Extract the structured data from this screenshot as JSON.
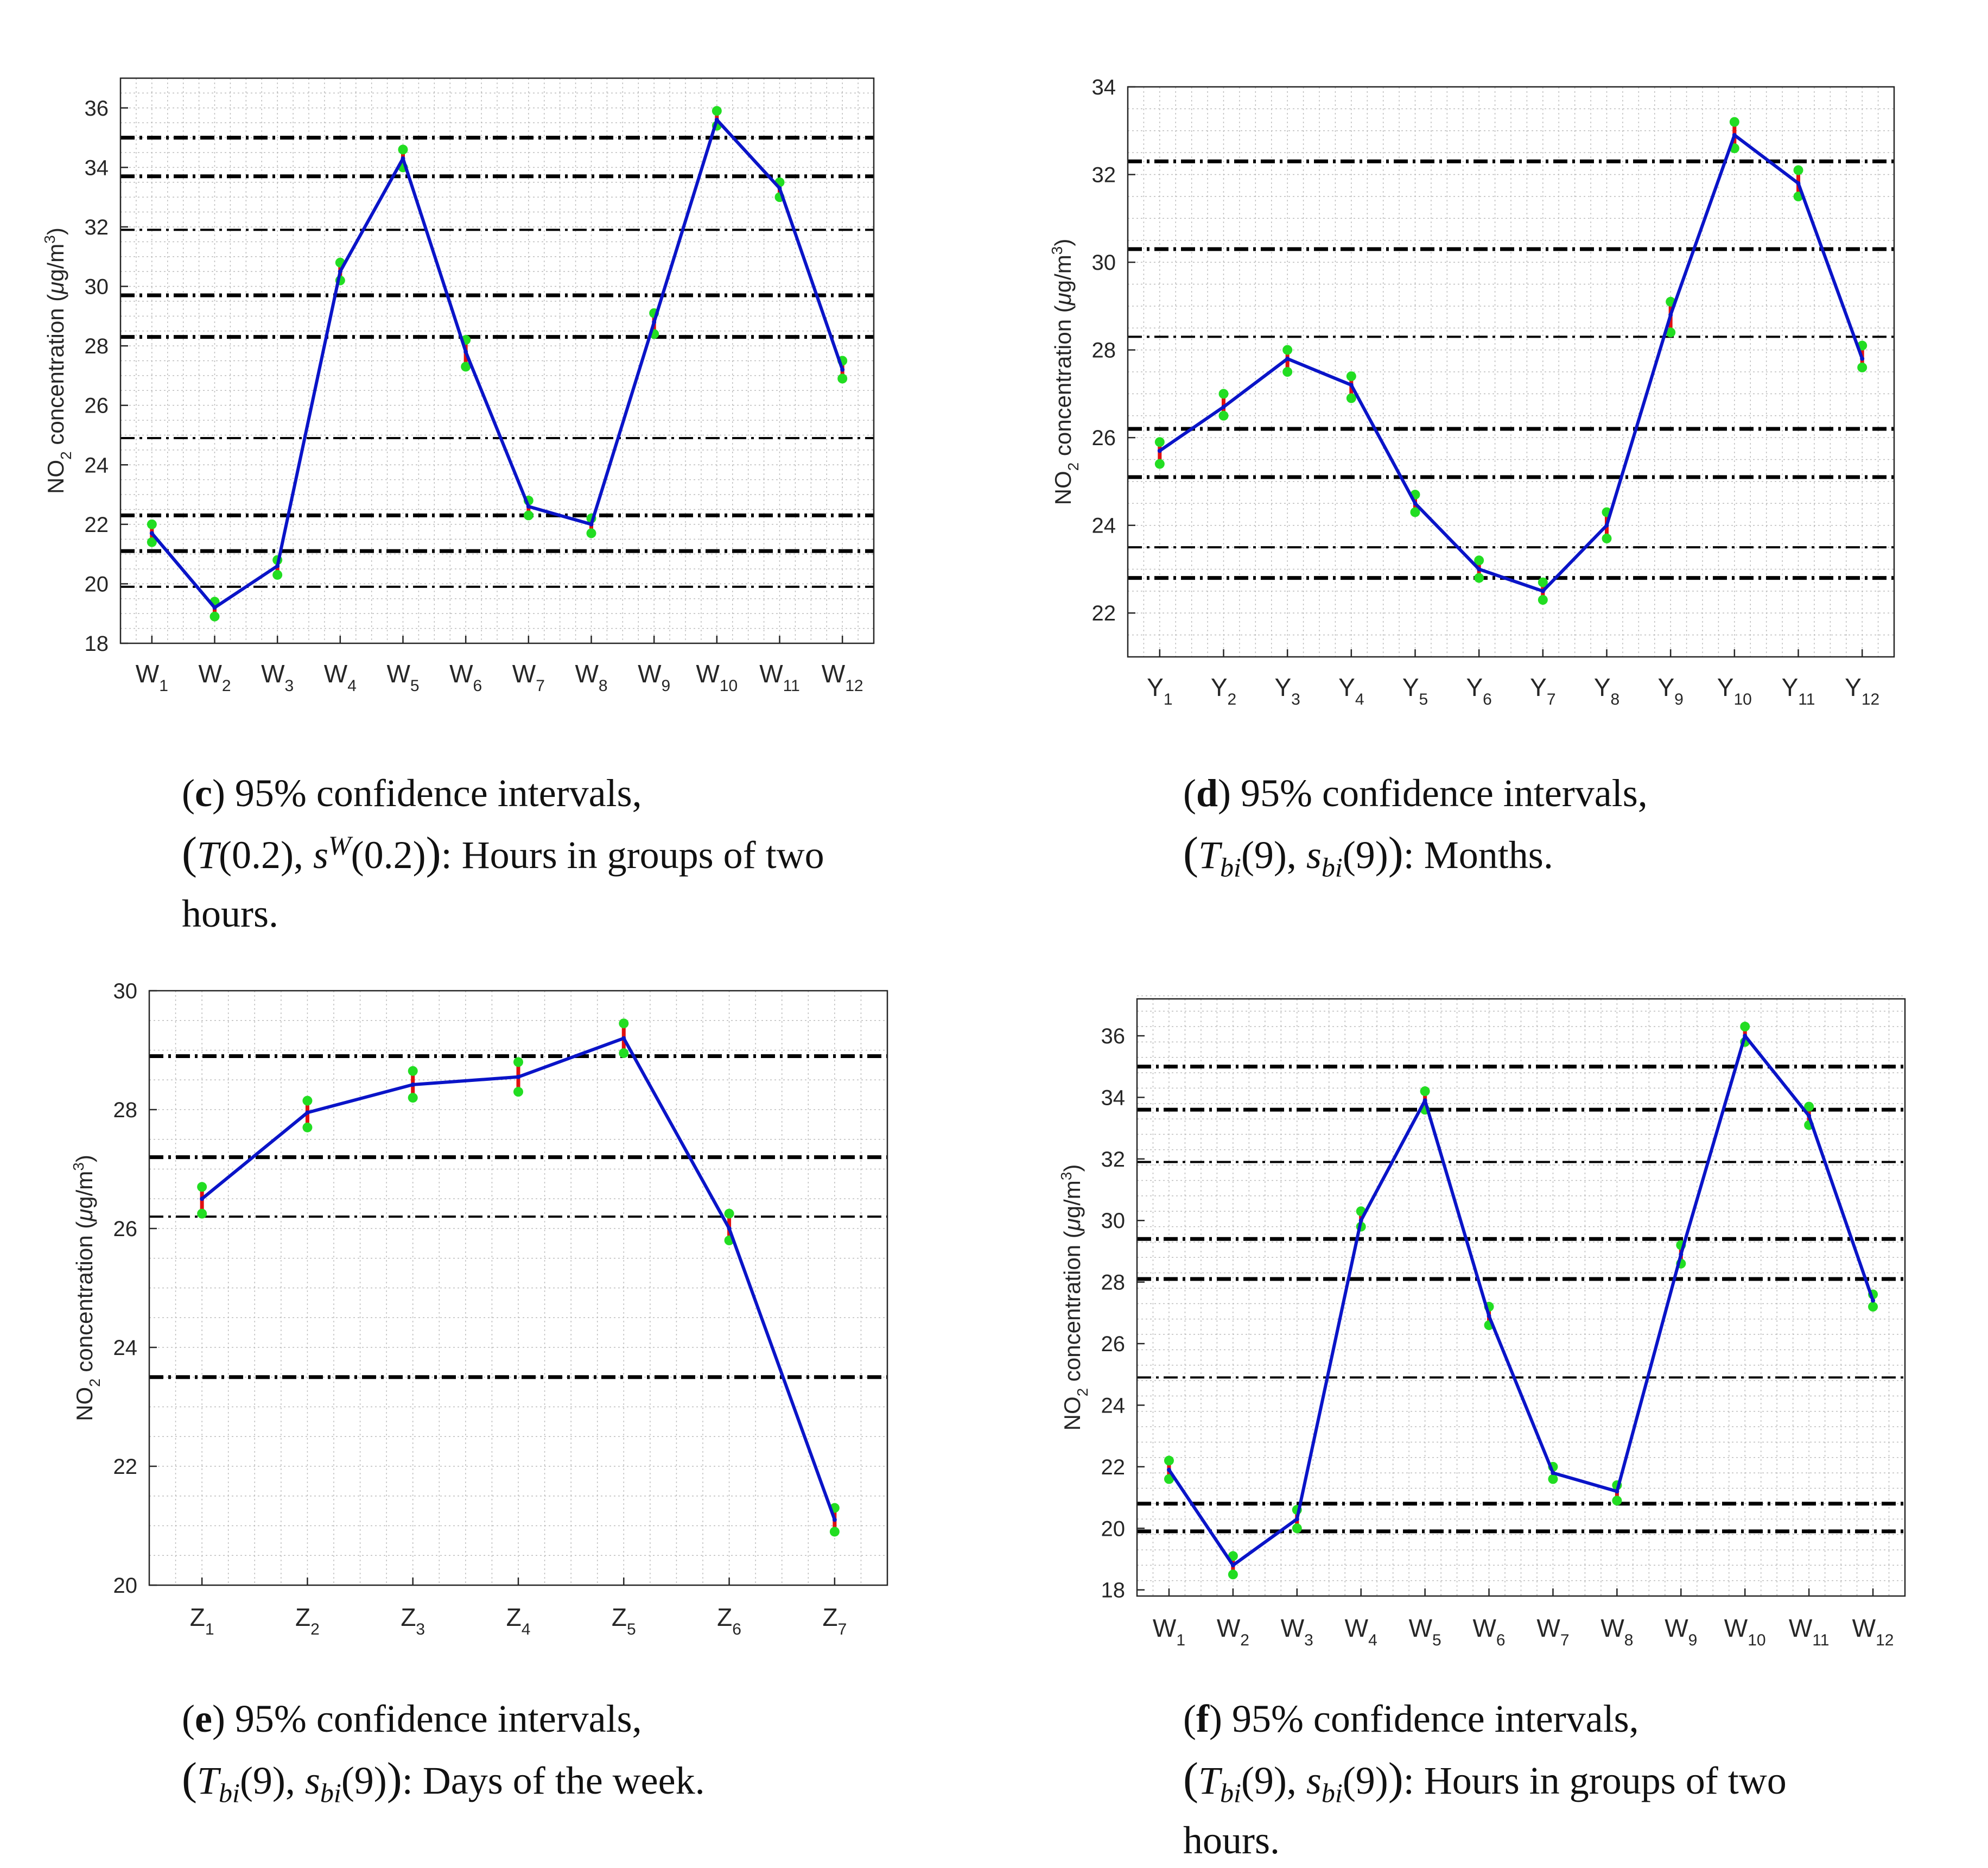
{
  "colors": {
    "series": "#0a14c8",
    "interval": "#e01010",
    "endpoints": "#22dd22",
    "reference": "#000000",
    "grid": "#bdbdbd"
  },
  "chart_data": [
    {
      "id": "c",
      "type": "line",
      "title": "",
      "ylabel": "NO2 concentration (μg/m3)",
      "categories": [
        "W1",
        "W2",
        "W3",
        "W4",
        "W5",
        "W6",
        "W7",
        "W8",
        "W9",
        "W10",
        "W11",
        "W12"
      ],
      "category_base": "W",
      "category_sub": [
        "1",
        "2",
        "3",
        "4",
        "5",
        "6",
        "7",
        "8",
        "9",
        "10",
        "11",
        "12"
      ],
      "values": [
        21.7,
        19.2,
        20.6,
        30.5,
        34.3,
        27.8,
        22.6,
        22.0,
        28.8,
        35.6,
        33.3,
        27.2
      ],
      "ci_low": [
        21.4,
        18.9,
        20.3,
        30.2,
        34.0,
        27.3,
        22.3,
        21.7,
        28.4,
        35.4,
        33.0,
        26.9
      ],
      "ci_high": [
        22.0,
        19.4,
        20.8,
        30.8,
        34.6,
        28.2,
        22.8,
        22.2,
        29.1,
        35.9,
        33.5,
        27.5
      ],
      "ylim": [
        18,
        37
      ],
      "yticks": [
        18,
        20,
        22,
        24,
        26,
        28,
        30,
        32,
        34,
        36
      ],
      "reference_lines": [
        35.0,
        33.7,
        31.9,
        29.7,
        28.3,
        24.9,
        22.3,
        21.1,
        19.9
      ],
      "grid": true
    },
    {
      "id": "d",
      "type": "line",
      "title": "",
      "ylabel": "NO2 concentration (μg/m3)",
      "categories": [
        "Y1",
        "Y2",
        "Y3",
        "Y4",
        "Y5",
        "Y6",
        "Y7",
        "Y8",
        "Y9",
        "Y10",
        "Y11",
        "Y12"
      ],
      "category_base": "Y",
      "category_sub": [
        "1",
        "2",
        "3",
        "4",
        "5",
        "6",
        "7",
        "8",
        "9",
        "10",
        "11",
        "12"
      ],
      "values": [
        25.7,
        26.7,
        27.8,
        27.2,
        24.5,
        23.0,
        22.5,
        24.0,
        28.8,
        32.9,
        31.8,
        27.8
      ],
      "ci_low": [
        25.4,
        26.5,
        27.5,
        26.9,
        24.3,
        22.8,
        22.3,
        23.7,
        28.4,
        32.6,
        31.5,
        27.6
      ],
      "ci_high": [
        25.9,
        27.0,
        28.0,
        27.4,
        24.7,
        23.2,
        22.7,
        24.3,
        29.1,
        33.2,
        32.1,
        28.1
      ],
      "ylim": [
        21,
        34
      ],
      "yticks": [
        22,
        24,
        26,
        28,
        30,
        32,
        34
      ],
      "reference_lines": [
        32.3,
        30.3,
        28.3,
        26.2,
        25.1,
        23.5,
        22.8
      ],
      "grid": true
    },
    {
      "id": "e",
      "type": "line",
      "title": "",
      "ylabel": "NO2 concentration (μg/m3)",
      "categories": [
        "Z1",
        "Z2",
        "Z3",
        "Z4",
        "Z5",
        "Z6",
        "Z7"
      ],
      "category_base": "Z",
      "category_sub": [
        "1",
        "2",
        "3",
        "4",
        "5",
        "6",
        "7"
      ],
      "values": [
        26.5,
        27.95,
        28.42,
        28.55,
        29.2,
        26.0,
        21.1
      ],
      "ci_low": [
        26.25,
        27.7,
        28.2,
        28.3,
        28.95,
        25.8,
        20.9
      ],
      "ci_high": [
        26.7,
        28.15,
        28.65,
        28.8,
        29.45,
        26.25,
        21.3
      ],
      "ylim": [
        20,
        30
      ],
      "yticks": [
        20,
        22,
        24,
        26,
        28,
        30
      ],
      "reference_lines": [
        28.9,
        27.2,
        26.2,
        23.5
      ],
      "grid": true
    },
    {
      "id": "f",
      "type": "line",
      "title": "",
      "ylabel": "NO2 concentration (μg/m3)",
      "categories": [
        "W1",
        "W2",
        "W3",
        "W4",
        "W5",
        "W6",
        "W7",
        "W8",
        "W9",
        "W10",
        "W11",
        "W12"
      ],
      "category_base": "W",
      "category_sub": [
        "1",
        "2",
        "3",
        "4",
        "5",
        "6",
        "7",
        "8",
        "9",
        "10",
        "11",
        "12"
      ],
      "values": [
        21.9,
        18.8,
        20.3,
        30.0,
        33.9,
        26.9,
        21.8,
        21.2,
        28.9,
        36.0,
        33.4,
        27.4
      ],
      "ci_low": [
        21.6,
        18.5,
        20.0,
        29.8,
        33.6,
        26.6,
        21.6,
        20.9,
        28.6,
        35.8,
        33.1,
        27.2
      ],
      "ci_high": [
        22.2,
        19.1,
        20.6,
        30.3,
        34.2,
        27.2,
        22.0,
        21.4,
        29.2,
        36.3,
        33.7,
        27.6
      ],
      "ylim": [
        17.8,
        37.2
      ],
      "yticks": [
        18,
        20,
        22,
        24,
        26,
        28,
        30,
        32,
        34,
        36
      ],
      "reference_lines": [
        35.0,
        33.6,
        31.9,
        29.4,
        28.1,
        24.9,
        20.8,
        19.9
      ],
      "grid": true
    }
  ],
  "captions": {
    "c": {
      "letter": "c",
      "line1": ") 95% confidence intervals,",
      "stat1_T": "T",
      "stat1_T_arg": "(0.2), ",
      "stat1_s": "s",
      "stat1_s_sup": "W",
      "stat1_s_arg": "(0.2)",
      "tail": ": Hours in groups of two",
      "line3": "hours."
    },
    "d": {
      "letter": "d",
      "line1": ") 95% confidence intervals,",
      "stat_T": "T",
      "stat_T_sub": "bi",
      "stat_T_arg": "(9), ",
      "stat_s": "s",
      "stat_s_sub": "bi",
      "stat_s_arg": "(9)",
      "tail": ": Months."
    },
    "e": {
      "letter": "e",
      "line1": ") 95% confidence intervals,",
      "stat_T": "T",
      "stat_T_sub": "bi",
      "stat_T_arg": "(9), ",
      "stat_s": "s",
      "stat_s_sub": "bi",
      "stat_s_arg": "(9)",
      "tail": ": Days of the week."
    },
    "f": {
      "letter": "f",
      "line1": ") 95% confidence intervals,",
      "stat_T": "T",
      "stat_T_sub": "bi",
      "stat_T_arg": "(9), ",
      "stat_s": "s",
      "stat_s_sub": "bi",
      "stat_s_arg": "(9)",
      "tail": ": Hours in groups of two",
      "line3": "hours."
    }
  }
}
